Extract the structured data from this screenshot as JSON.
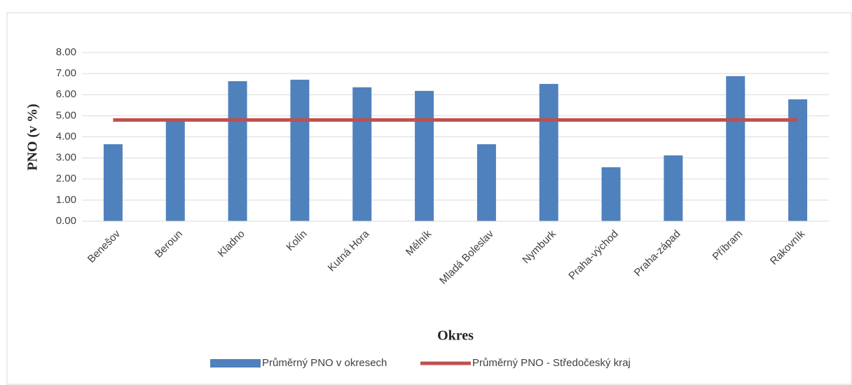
{
  "chart_data": {
    "type": "bar",
    "categories": [
      "Benešov",
      "Beroun",
      "Kladno",
      "Kolín",
      "Kutná Hora",
      "Mělník",
      "Mladá Boleslav",
      "Nymburk",
      "Praha-východ",
      "Praha-západ",
      "Příbram",
      "Rakovník"
    ],
    "series": [
      {
        "name": "Průměrný PNO v okresech",
        "type": "bar",
        "color": "#4f81bd",
        "values": [
          3.65,
          4.85,
          6.64,
          6.71,
          6.35,
          6.18,
          3.65,
          6.51,
          2.56,
          3.12,
          6.88,
          5.78
        ]
      },
      {
        "name": "Průměrný PNO - Středočeský kraj",
        "type": "line",
        "color": "#c0504d",
        "values": [
          4.8,
          4.8,
          4.8,
          4.8,
          4.8,
          4.8,
          4.8,
          4.8,
          4.8,
          4.8,
          4.8,
          4.8
        ]
      }
    ],
    "x_label": "Okres",
    "y_label": "PNO (v %)",
    "ylim": [
      0,
      8
    ],
    "yticks": [
      {
        "value": 0,
        "label": "0.00"
      },
      {
        "value": 1,
        "label": "1.00"
      },
      {
        "value": 2,
        "label": "2.00"
      },
      {
        "value": 3,
        "label": "3.00"
      },
      {
        "value": 4,
        "label": "4.00"
      },
      {
        "value": 5,
        "label": "5.00"
      },
      {
        "value": 6,
        "label": "6.00"
      },
      {
        "value": 7,
        "label": "7.00"
      },
      {
        "value": 8,
        "label": "8.00"
      }
    ],
    "grid": true,
    "legend": "bottom"
  }
}
